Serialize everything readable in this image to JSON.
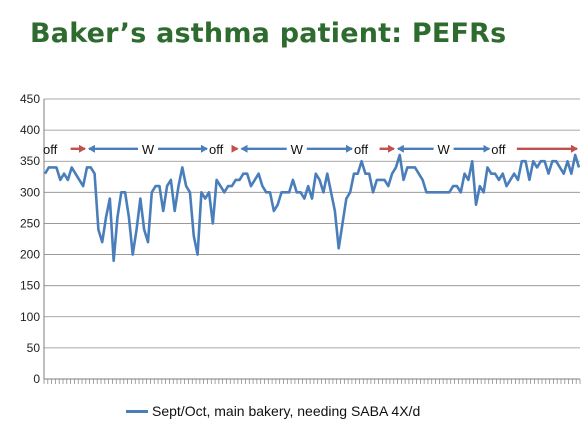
{
  "slide": {
    "title": "Baker’s asthma patient: PEFRs"
  },
  "chart_data": {
    "type": "line",
    "ylim": [
      0,
      450
    ],
    "yticks": [
      0,
      50,
      100,
      150,
      200,
      250,
      300,
      350,
      400,
      450
    ],
    "grid": true,
    "series_color": "#4a7ebb",
    "series": [
      {
        "name": "Sept/Oct, main bakery, needing SABA 4X/d",
        "values": [
          330,
          340,
          340,
          340,
          320,
          330,
          320,
          340,
          330,
          320,
          310,
          340,
          340,
          330,
          240,
          220,
          260,
          290,
          190,
          260,
          300,
          300,
          260,
          200,
          240,
          290,
          240,
          220,
          300,
          310,
          310,
          270,
          310,
          320,
          270,
          310,
          340,
          310,
          300,
          230,
          200,
          300,
          290,
          300,
          250,
          320,
          310,
          300,
          310,
          310,
          320,
          320,
          330,
          330,
          310,
          320,
          330,
          310,
          300,
          300,
          270,
          280,
          300,
          300,
          300,
          320,
          300,
          300,
          290,
          310,
          290,
          330,
          320,
          300,
          330,
          300,
          270,
          210,
          250,
          290,
          300,
          330,
          330,
          350,
          330,
          330,
          300,
          320,
          320,
          320,
          310,
          330,
          340,
          360,
          320,
          340,
          340,
          340,
          330,
          320,
          300,
          300,
          300,
          300,
          300,
          300,
          300,
          310,
          310,
          300,
          330,
          320,
          350,
          280,
          310,
          300,
          340,
          330,
          330,
          320,
          330,
          310,
          320,
          330,
          320,
          350,
          350,
          320,
          350,
          340,
          350,
          350,
          330,
          350,
          350,
          340,
          330,
          350,
          330,
          360,
          340
        ]
      }
    ],
    "annotations": [
      {
        "label": "off",
        "arrow": "right",
        "color": "#c0504d",
        "x_start": 0,
        "x_end": 11
      },
      {
        "label": "W",
        "arrow": "both",
        "color": "#4a7ebb",
        "x_start": 11,
        "x_end": 43
      },
      {
        "label": "off",
        "arrow": "right",
        "color": "#c0504d",
        "x_start": 43,
        "x_end": 51
      },
      {
        "label": "W",
        "arrow": "both",
        "color": "#4a7ebb",
        "x_start": 51,
        "x_end": 81
      },
      {
        "label": "off",
        "arrow": "right",
        "color": "#c0504d",
        "x_start": 81,
        "x_end": 92
      },
      {
        "label": "W",
        "arrow": "both",
        "color": "#4a7ebb",
        "x_start": 92,
        "x_end": 117
      },
      {
        "label": "off",
        "arrow": "right",
        "color": "#c0504d",
        "x_start": 117,
        "x_end": 140
      }
    ],
    "legend": {
      "position": "bottom"
    }
  }
}
